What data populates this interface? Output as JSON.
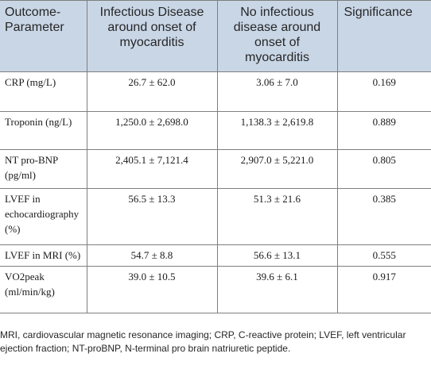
{
  "table": {
    "headers": [
      "Outcome-Parameter",
      "Infectious Disease around onset of myocarditis",
      "No infectious disease around onset of myocarditis",
      "Significance"
    ],
    "rows": [
      {
        "parameter": "CRP (mg/L)",
        "infectious": "26.7 ± 62.0",
        "no_infectious": "3.06 ± 7.0",
        "significance": "0.169"
      },
      {
        "parameter": "Troponin (ng/L)",
        "infectious": "1,250.0 ± 2,698.0",
        "no_infectious": "1,138.3 ± 2,619.8",
        "significance": "0.889"
      },
      {
        "parameter": "NT pro-BNP (pg/ml)",
        "infectious": "2,405.1 ± 7,121.4",
        "no_infectious": "2,907.0 ± 5,221.0",
        "significance": "0.805"
      },
      {
        "parameter": "LVEF in echocardiography (%)",
        "infectious": "56.5 ± 13.3",
        "no_infectious": "51.3 ± 21.6",
        "significance": "0.385"
      },
      {
        "parameter": "LVEF in MRI (%)",
        "infectious": "54.7 ± 8.8",
        "no_infectious": "56.6 ± 13.1",
        "significance": "0.555"
      },
      {
        "parameter": "VO2peak (ml/min/kg)",
        "infectious": "39.0 ± 10.5",
        "no_infectious": "39.6 ± 6.1",
        "significance": "0.917"
      }
    ]
  },
  "footnote": "MRI, cardiovascular magnetic resonance imaging; CRP, C-reactive protein; LVEF, left ventricular ejection fraction; NT-proBNP, N-terminal pro brain natriuretic peptide.",
  "colors": {
    "header_background": "#c9d6e6",
    "border": "#7f7f7f"
  }
}
